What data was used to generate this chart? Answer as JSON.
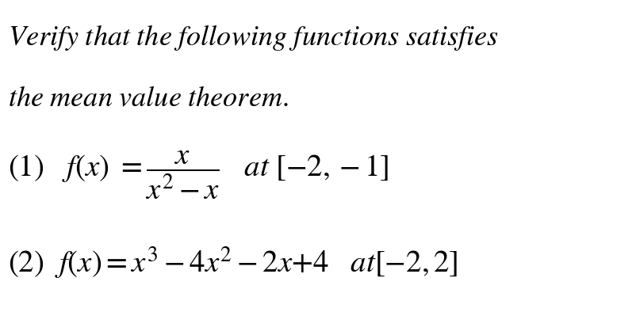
{
  "background_color": "#ffffff",
  "line1": "Verify that the following functions satisfies",
  "line2": "the mean value theorem.",
  "eq1_left": "(1)   f(x) =",
  "eq1_frac_num": "x",
  "eq1_frac_den": "x^{2}-x",
  "eq1_right": "  at [−2,−1]",
  "eq2": "(2)  f(x)=x^{3}-4x^{2}-2x+4   at[-2,2]",
  "font_size_title": 30,
  "font_size_body": 32,
  "text_color": "#000000"
}
